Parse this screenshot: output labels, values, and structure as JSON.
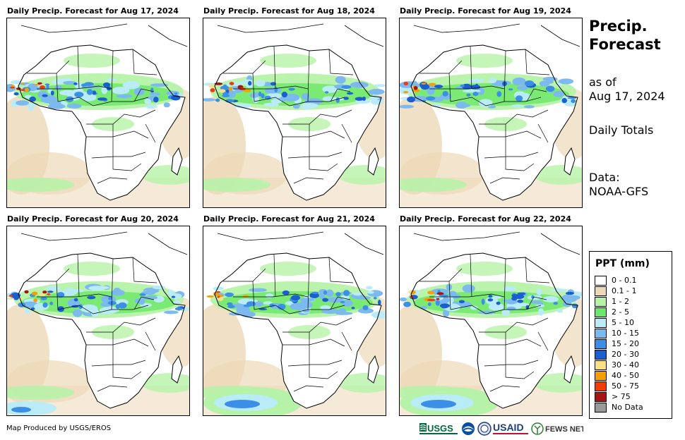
{
  "panels": [
    {
      "title": "Daily Precip. Forecast for Aug 17, 2024"
    },
    {
      "title": "Daily Precip. Forecast for Aug 18, 2024"
    },
    {
      "title": "Daily Precip. Forecast for Aug 19, 2024"
    },
    {
      "title": "Daily Precip. Forecast for Aug 20, 2024"
    },
    {
      "title": "Daily Precip. Forecast for Aug 21, 2024"
    },
    {
      "title": "Daily Precip. Forecast for Aug 22, 2024"
    }
  ],
  "sidebar": {
    "title_line1": "Precip.",
    "title_line2": "Forecast",
    "as_of_label": "as of",
    "as_of_date": "Aug 17, 2024",
    "totals": "Daily Totals",
    "data_label": "Data:",
    "data_source": "NOAA-GFS"
  },
  "legend": {
    "title": "PPT (mm)",
    "items": [
      {
        "label": "0 - 0.1",
        "color": "#ffffff"
      },
      {
        "label": "0.1 - 1",
        "color": "#ecd9b8"
      },
      {
        "label": "1 - 2",
        "color": "#b6f2a8"
      },
      {
        "label": "2 - 5",
        "color": "#6ee86a"
      },
      {
        "label": "5 - 10",
        "color": "#b9ecf6"
      },
      {
        "label": "10 - 15",
        "color": "#7cb9ef"
      },
      {
        "label": "15 - 20",
        "color": "#3c8fe6"
      },
      {
        "label": "20 - 30",
        "color": "#1a5fd1"
      },
      {
        "label": "30 - 40",
        "color": "#f9df86"
      },
      {
        "label": "40 - 50",
        "color": "#f3a000"
      },
      {
        "label": "50 - 75",
        "color": "#f23c08"
      },
      {
        "label": "> 75",
        "color": "#a81414"
      },
      {
        "label": "No Data",
        "color": "#9a9a9a"
      }
    ]
  },
  "footer": {
    "credit": "Map Produced by USGS/EROS",
    "logos": [
      "USGS",
      "USAID",
      "FEWS NET"
    ]
  }
}
